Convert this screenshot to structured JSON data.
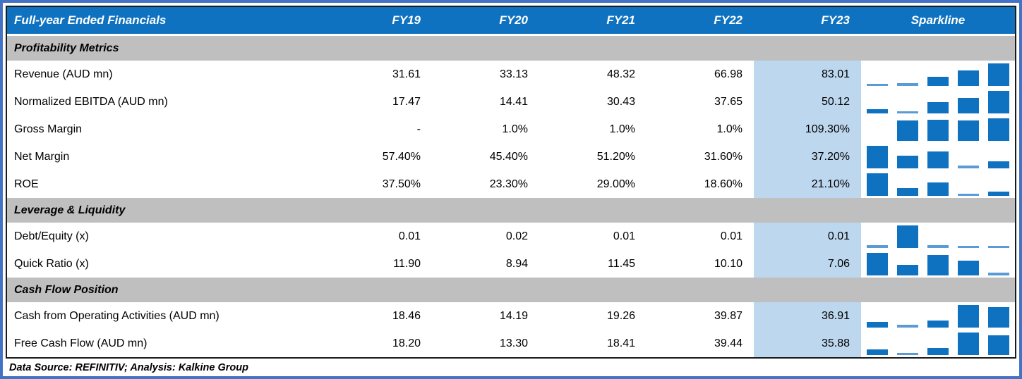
{
  "colors": {
    "frame_blue": "#4472C4",
    "header_blue": "#0E72C0",
    "section_gray": "#BFBFBF",
    "highlight_blue": "#BDD7EE",
    "spark_blue": "#0E72C0",
    "spark_light": "#5B9BD5",
    "border_black": "#1a1a1a"
  },
  "chart_data": {
    "type": "table",
    "title": "Full-year Ended Financials",
    "columns": [
      "FY19",
      "FY20",
      "FY21",
      "FY22",
      "FY23",
      "Sparkline"
    ],
    "highlight_column": "FY23",
    "sections": [
      {
        "label": "Profitability Metrics",
        "rows": [
          {
            "label": "Revenue (AUD mn)",
            "values": [
              "31.61",
              "33.13",
              "48.32",
              "66.98",
              "83.01"
            ],
            "spark": [
              0.05,
              0.08,
              0.37,
              0.68,
              1
            ]
          },
          {
            "label": "Normalized EBITDA (AUD mn)",
            "values": [
              "17.47",
              "14.41",
              "30.43",
              "37.65",
              "50.12"
            ],
            "spark": [
              0.14,
              0.05,
              0.48,
              0.68,
              1
            ]
          },
          {
            "label": "Gross Margin",
            "values": [
              "-",
              "1.0%",
              "1.0%",
              "1.0%",
              "109.30%"
            ],
            "spark": [
              null,
              0.9,
              0.92,
              0.9,
              1
            ]
          },
          {
            "label": "Net Margin",
            "values": [
              "57.40%",
              "45.40%",
              "51.20%",
              "31.60%",
              "37.20%"
            ],
            "spark": [
              1,
              0.55,
              0.75,
              0.06,
              0.28
            ]
          },
          {
            "label": "ROE",
            "values": [
              "37.50%",
              "23.30%",
              "29.00%",
              "18.60%",
              "21.10%"
            ],
            "spark": [
              1,
              0.3,
              0.56,
              0.05,
              0.15
            ]
          }
        ]
      },
      {
        "label": "Leverage & Liquidity",
        "rows": [
          {
            "label": "Debt/Equity (x)",
            "values": [
              "0.01",
              "0.02",
              "0.01",
              "0.01",
              "0.01"
            ],
            "spark": [
              0.06,
              1,
              0.06,
              0.05,
              0.05
            ]
          },
          {
            "label": "Quick Ratio (x)",
            "values": [
              "11.90",
              "8.94",
              "11.45",
              "10.10",
              "7.06"
            ],
            "spark": [
              1,
              0.42,
              0.9,
              0.64,
              0.06
            ]
          }
        ]
      },
      {
        "label": "Cash Flow Position",
        "rows": [
          {
            "label": "Cash from Operating Activities (AUD mn)",
            "values": [
              "18.46",
              "14.19",
              "19.26",
              "39.87",
              "36.91"
            ],
            "spark": [
              0.2,
              0.06,
              0.26,
              1,
              0.9
            ]
          },
          {
            "label": "Free Cash Flow (AUD mn)",
            "values": [
              "18.20",
              "13.30",
              "18.41",
              "39.44",
              "35.88"
            ],
            "spark": [
              0.2,
              0.05,
              0.26,
              1,
              0.88
            ]
          }
        ]
      }
    ],
    "footer": "Data Source: REFINITIV; Analysis: Kalkine Group"
  }
}
